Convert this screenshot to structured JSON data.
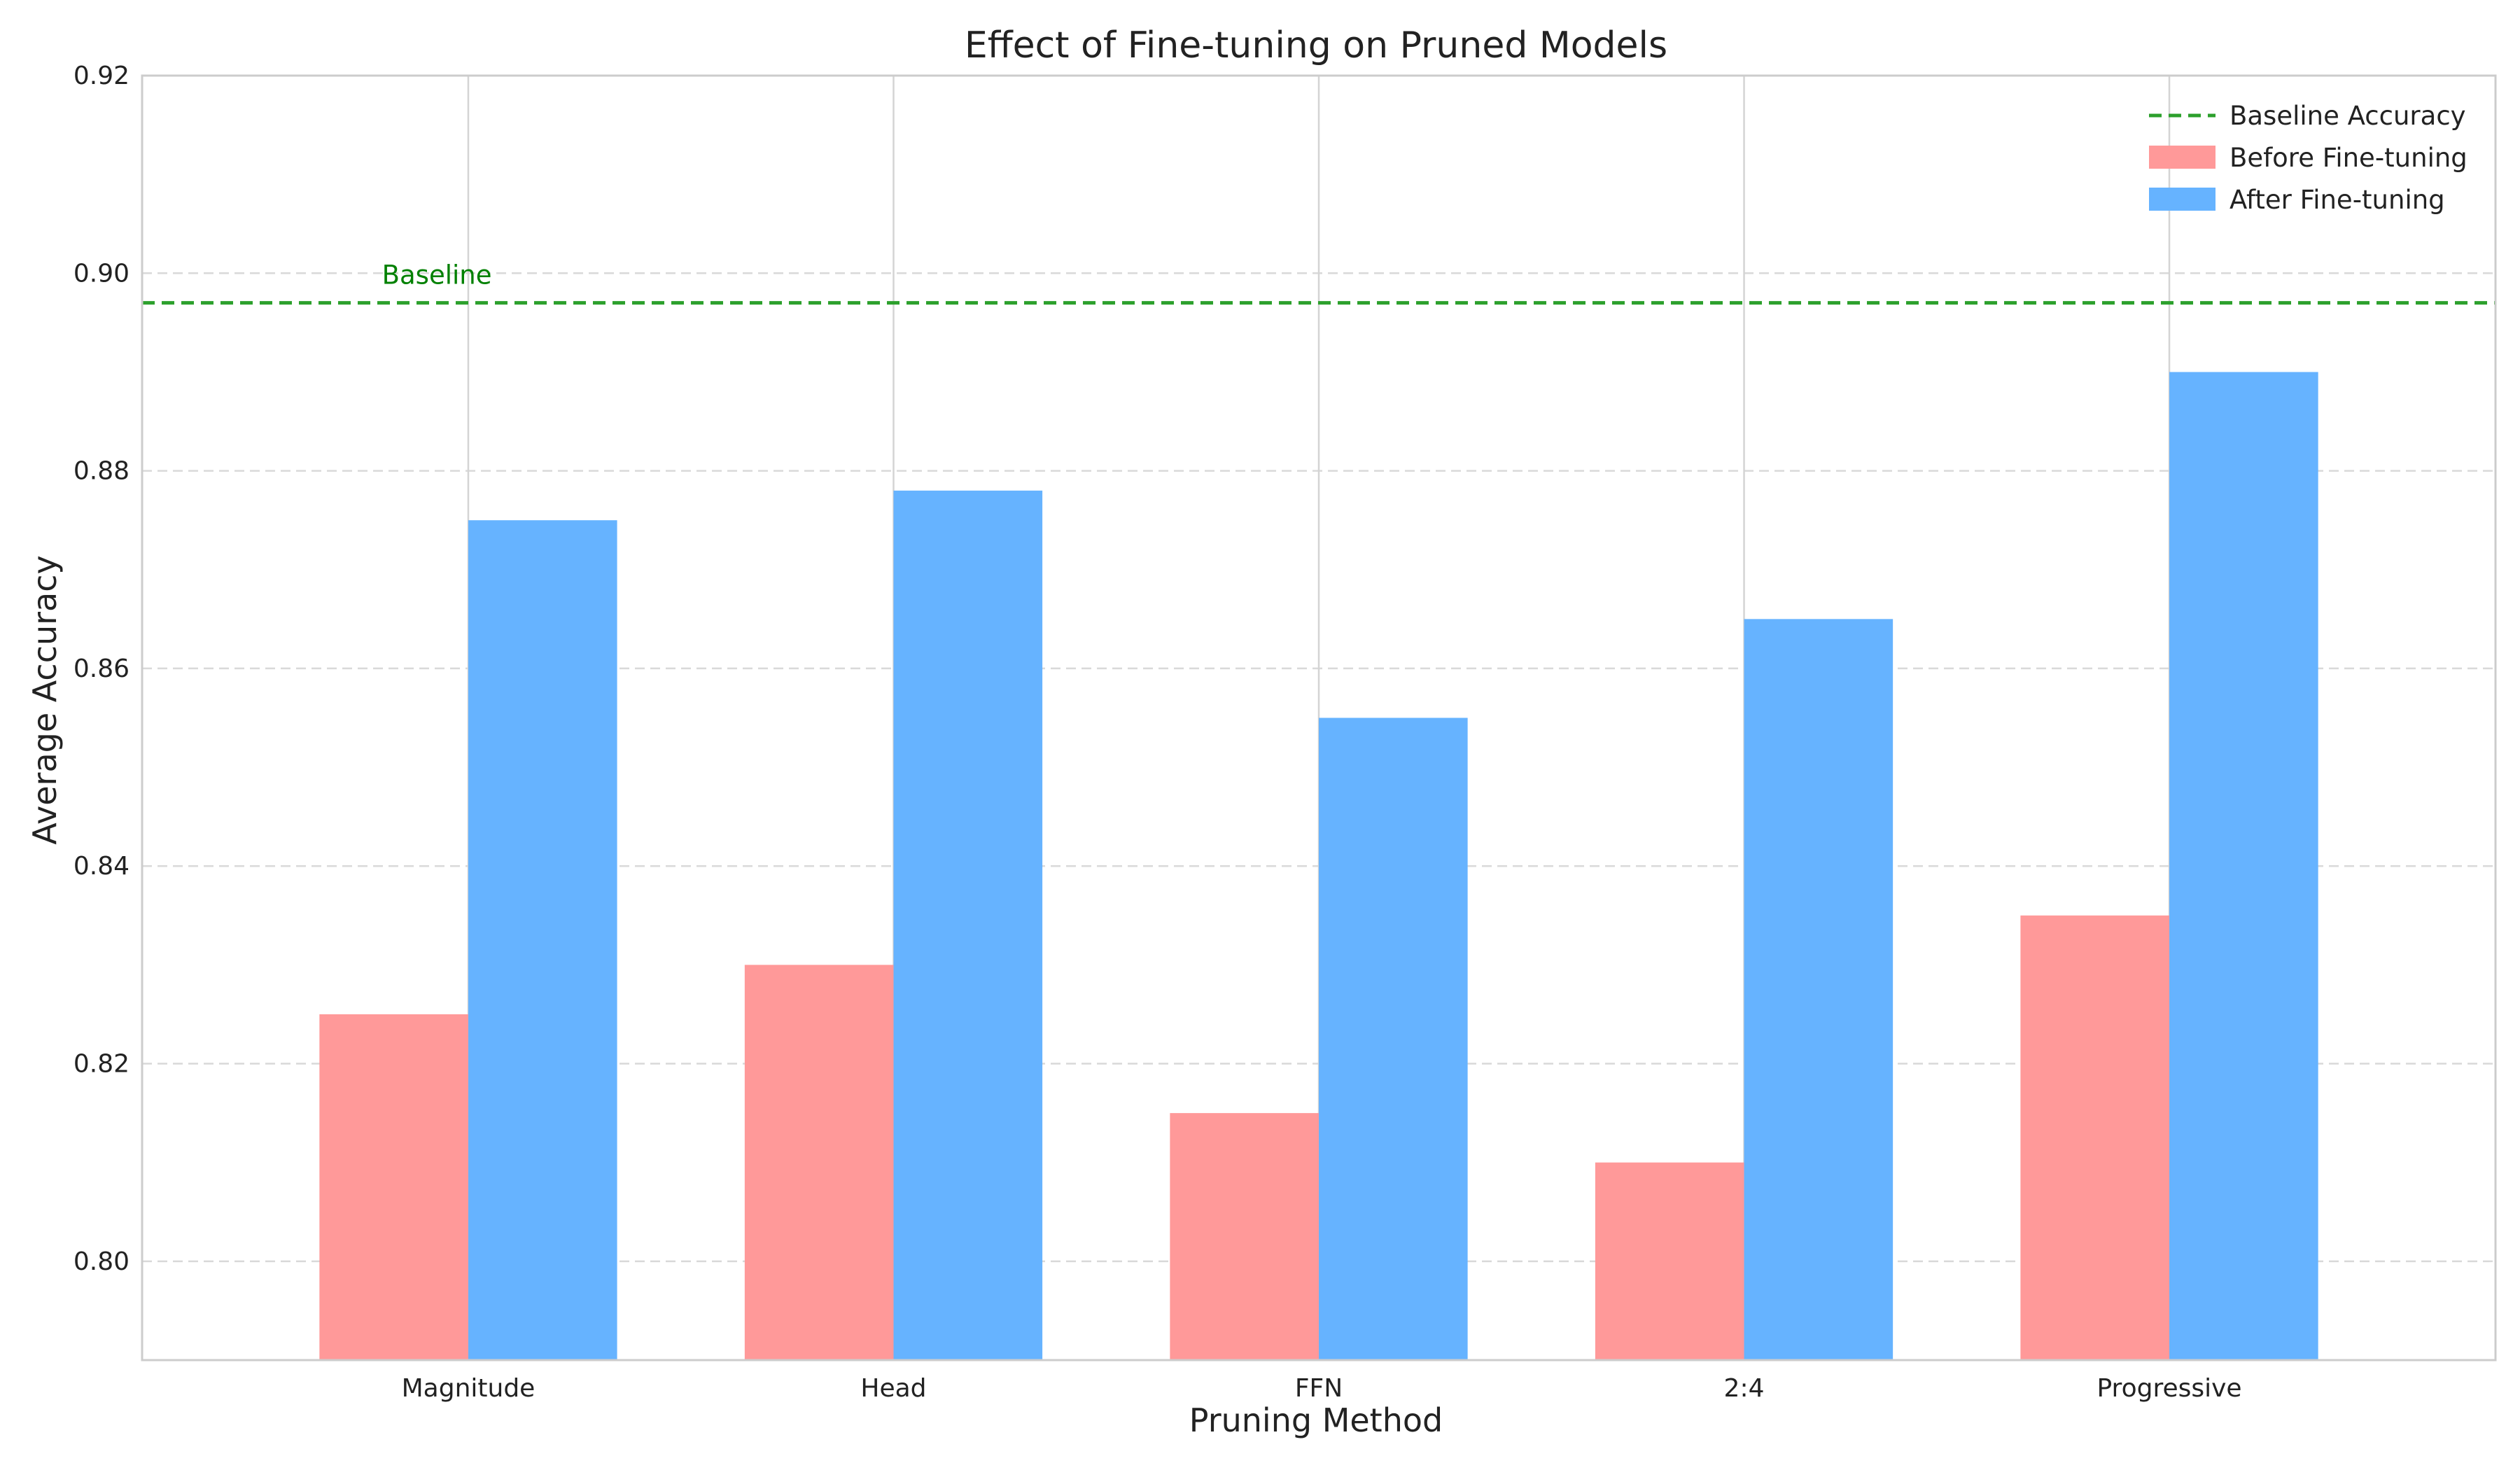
{
  "chart_data": {
    "type": "bar",
    "title": "Effect of Fine-tuning on Pruned Models",
    "xlabel": "Pruning Method",
    "ylabel": "Average Accuracy",
    "categories": [
      "Magnitude",
      "Head",
      "FFN",
      "2:4",
      "Progressive"
    ],
    "series": [
      {
        "name": "Before Fine-tuning",
        "color": "#ff9999",
        "values": [
          0.825,
          0.83,
          0.815,
          0.81,
          0.835
        ]
      },
      {
        "name": "After Fine-tuning",
        "color": "#66b3ff",
        "values": [
          0.875,
          0.878,
          0.855,
          0.865,
          0.89
        ]
      }
    ],
    "baseline": {
      "name": "Baseline Accuracy",
      "value": 0.897,
      "color": "#2ca02c",
      "annotation": "Baseline",
      "annotation_color": "#008000"
    },
    "ylim": [
      0.79,
      0.92
    ],
    "yticks": [
      "0.80",
      "0.82",
      "0.84",
      "0.86",
      "0.88",
      "0.90",
      "0.92"
    ],
    "ytick_values": [
      0.8,
      0.82,
      0.84,
      0.86,
      0.88,
      0.9,
      0.92
    ],
    "grid": {
      "y": "dashed",
      "x": "solid"
    },
    "legend_position": "top-right"
  }
}
